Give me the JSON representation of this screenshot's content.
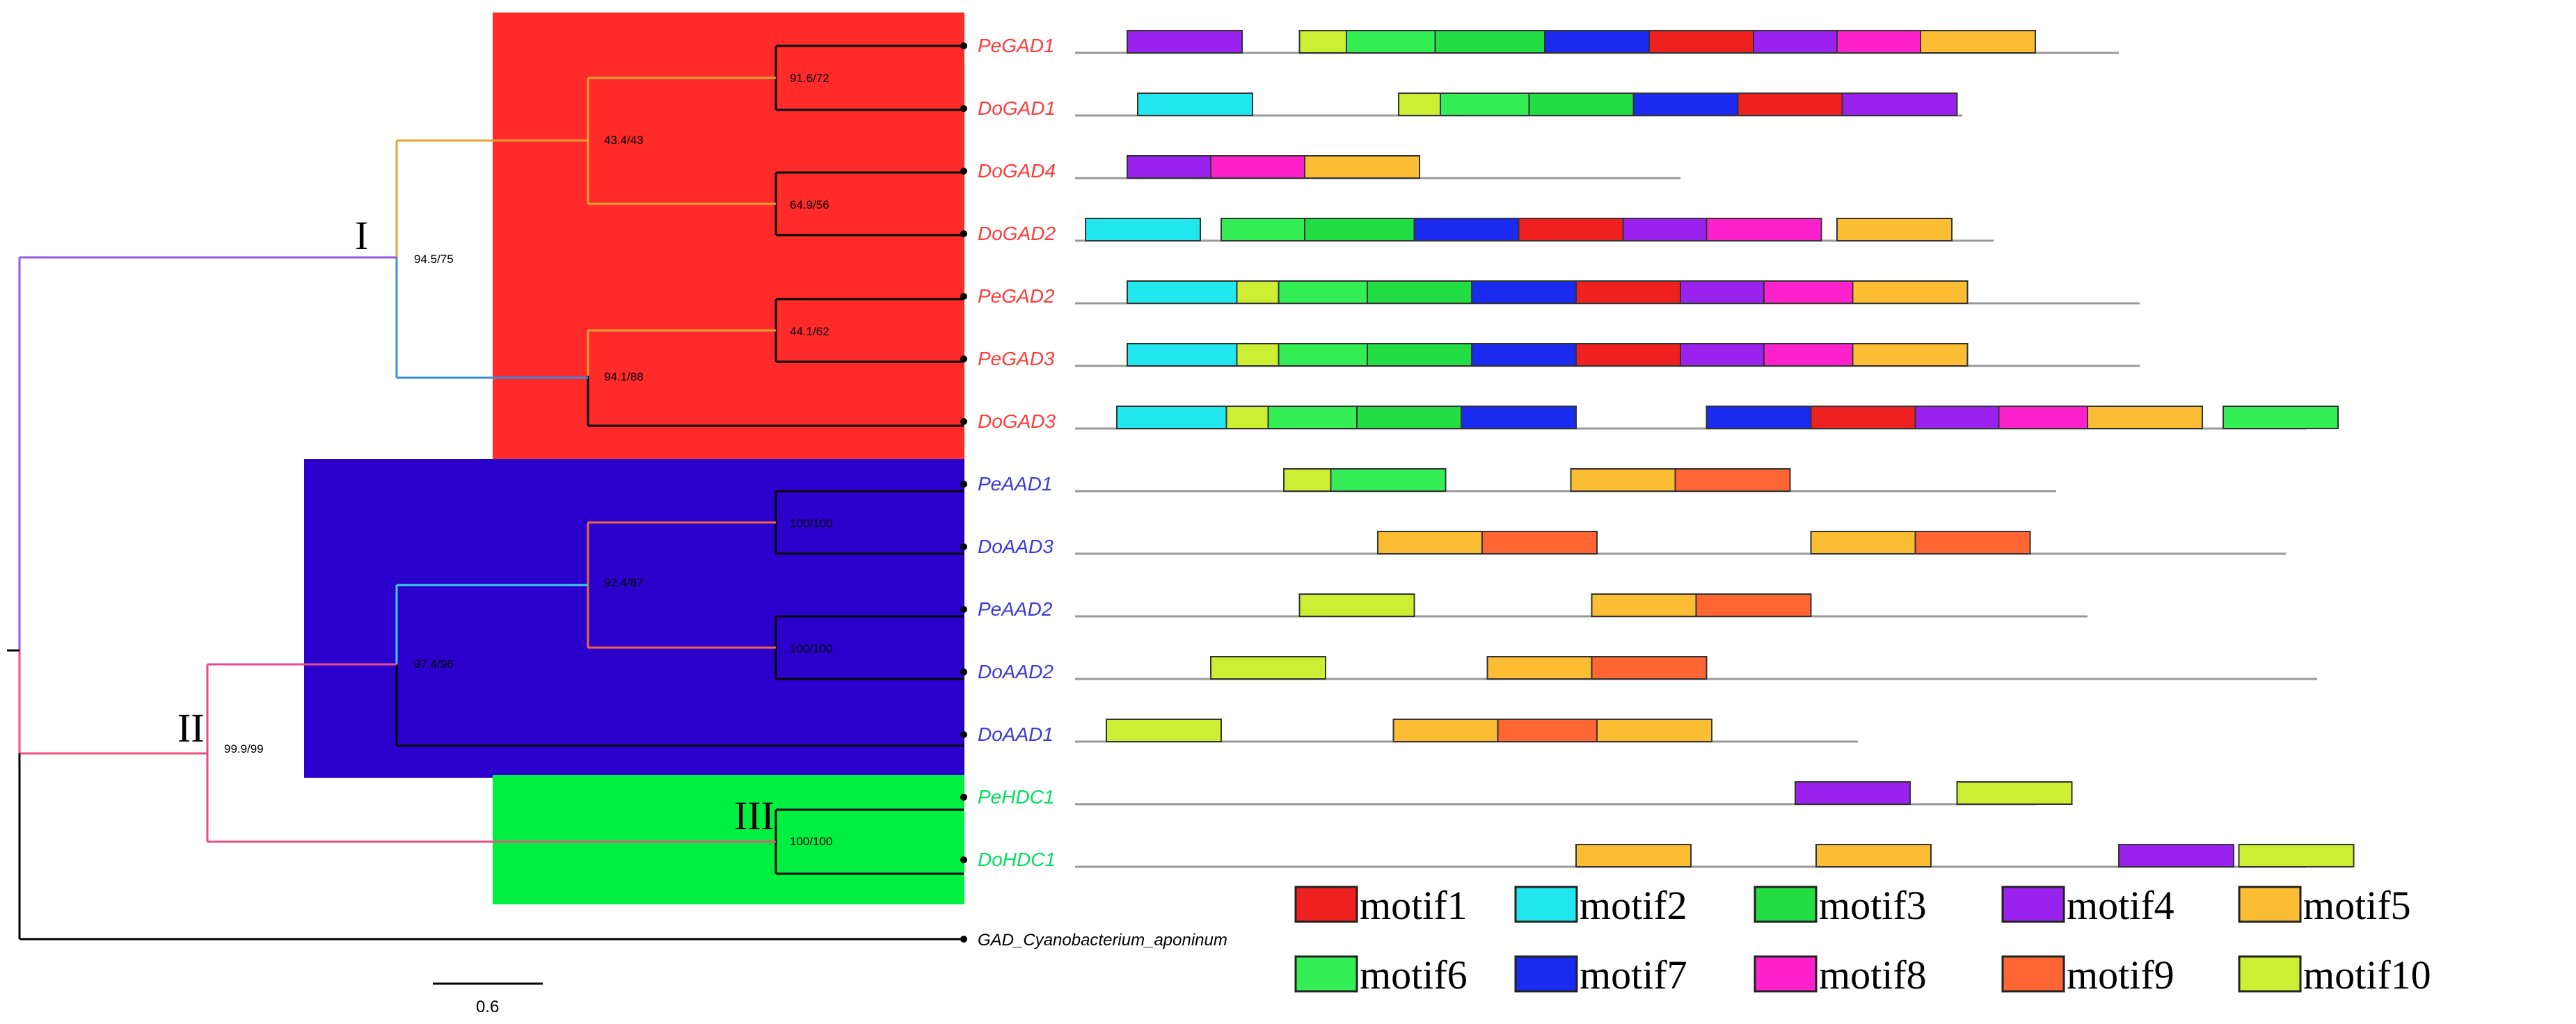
{
  "figure": {
    "clade_labels": [
      "I",
      "II",
      "III"
    ],
    "scale_bar_label": "0.6",
    "colors": {
      "clade_gad_box": "#ff2a2a",
      "clade_aad_box": "#2b00cc",
      "clade_hdc_box": "#00f041",
      "gad_label": "#ff3b3b",
      "aad_label": "#3a3ad6",
      "hdc_label": "#00e060",
      "outgroup_label": "#000000"
    }
  },
  "tree": {
    "support_values": [
      "91.6/72",
      "43.4/43",
      "64.9/56",
      "94.5/75",
      "44.1/62",
      "94.1/88",
      "100/100",
      "92.4/87",
      "100/100",
      "97.4/96",
      "99.9/99",
      "100/100"
    ]
  },
  "sequences": [
    {
      "name": "PeGAD1",
      "group": "gad",
      "length": 1.0,
      "motifs": [
        [
          4,
          0.05
        ],
        [
          10,
          0.215
        ],
        [
          6,
          0.26
        ],
        [
          3,
          0.345
        ],
        [
          7,
          0.45
        ],
        [
          1,
          0.55
        ],
        [
          4,
          0.65
        ],
        [
          8,
          0.73
        ],
        [
          5,
          0.81
        ]
      ]
    },
    {
      "name": "DoGAD1",
      "group": "gad",
      "length": 0.85,
      "motifs": [
        [
          2,
          0.06
        ],
        [
          10,
          0.31
        ],
        [
          6,
          0.35
        ],
        [
          3,
          0.435
        ],
        [
          7,
          0.535
        ],
        [
          1,
          0.635
        ],
        [
          4,
          0.735
        ]
      ]
    },
    {
      "name": "DoGAD4",
      "group": "gad",
      "length": 0.58,
      "motifs": [
        [
          4,
          0.05
        ],
        [
          8,
          0.13
        ],
        [
          5,
          0.22
        ]
      ]
    },
    {
      "name": "DoGAD2",
      "group": "gad",
      "length": 0.88,
      "motifs": [
        [
          2,
          0.01
        ],
        [
          6,
          0.14
        ],
        [
          3,
          0.22
        ],
        [
          7,
          0.325
        ],
        [
          1,
          0.425
        ],
        [
          4,
          0.525
        ],
        [
          8,
          0.605
        ],
        [
          5,
          0.73
        ]
      ]
    },
    {
      "name": "PeGAD2",
      "group": "gad",
      "length": 1.02,
      "motifs": [
        [
          2,
          0.05
        ],
        [
          10,
          0.155
        ],
        [
          6,
          0.195
        ],
        [
          3,
          0.28
        ],
        [
          7,
          0.38
        ],
        [
          1,
          0.48
        ],
        [
          4,
          0.58
        ],
        [
          8,
          0.66
        ],
        [
          5,
          0.745
        ]
      ]
    },
    {
      "name": "PeGAD3",
      "group": "gad",
      "length": 1.02,
      "motifs": [
        [
          2,
          0.05
        ],
        [
          10,
          0.155
        ],
        [
          6,
          0.195
        ],
        [
          3,
          0.28
        ],
        [
          7,
          0.38
        ],
        [
          1,
          0.48
        ],
        [
          4,
          0.58
        ],
        [
          8,
          0.66
        ],
        [
          5,
          0.745
        ]
      ]
    },
    {
      "name": "DoGAD3",
      "group": "gad",
      "length": 1.18,
      "motifs": [
        [
          2,
          0.04
        ],
        [
          10,
          0.145
        ],
        [
          6,
          0.185
        ],
        [
          3,
          0.27
        ],
        [
          7,
          0.37
        ],
        [
          7,
          0.605
        ],
        [
          1,
          0.705
        ],
        [
          4,
          0.805
        ],
        [
          8,
          0.885
        ],
        [
          5,
          0.97
        ],
        [
          6,
          1.1
        ]
      ]
    },
    {
      "name": "PeAAD1",
      "group": "aad",
      "length": 0.94,
      "motifs": [
        [
          10,
          0.2
        ],
        [
          6,
          0.245
        ],
        [
          5,
          0.475
        ],
        [
          9,
          0.575
        ]
      ]
    },
    {
      "name": "DoAAD3",
      "group": "aad",
      "length": 1.16,
      "motifs": [
        [
          5,
          0.29
        ],
        [
          9,
          0.39
        ],
        [
          5,
          0.705
        ],
        [
          9,
          0.805
        ]
      ]
    },
    {
      "name": "PeAAD2",
      "group": "aad",
      "length": 0.97,
      "motifs": [
        [
          10,
          0.215
        ],
        [
          5,
          0.495
        ],
        [
          9,
          0.595
        ]
      ]
    },
    {
      "name": "DoAAD2",
      "group": "aad",
      "length": 1.19,
      "motifs": [
        [
          10,
          0.13
        ],
        [
          5,
          0.395
        ],
        [
          9,
          0.495
        ]
      ]
    },
    {
      "name": "DoAAD1",
      "group": "aad",
      "length": 0.75,
      "motifs": [
        [
          10,
          0.03
        ],
        [
          5,
          0.305
        ],
        [
          9,
          0.405
        ],
        [
          5,
          0.5
        ]
      ]
    },
    {
      "name": "PeHDC1",
      "group": "hdc",
      "length": 0.92,
      "motifs": [
        [
          4,
          0.69
        ],
        [
          10,
          0.845
        ]
      ]
    },
    {
      "name": "DoHDC1",
      "group": "hdc",
      "length": 1.18,
      "motifs": [
        [
          5,
          0.48
        ],
        [
          5,
          0.71
        ],
        [
          4,
          1.0
        ],
        [
          10,
          1.115
        ]
      ]
    },
    {
      "name": "GAD_Cyanobacterium_aponinum",
      "group": "outgroup",
      "length": 0,
      "motifs": []
    }
  ],
  "legend": [
    {
      "id": 1,
      "label": "motif1",
      "color": "#ee2020"
    },
    {
      "id": 2,
      "label": "motif2",
      "color": "#22e6ee"
    },
    {
      "id": 3,
      "label": "motif3",
      "color": "#22dd44"
    },
    {
      "id": 4,
      "label": "motif4",
      "color": "#9922ee"
    },
    {
      "id": 5,
      "label": "motif5",
      "color": "#fbbd33"
    },
    {
      "id": 6,
      "label": "motif6",
      "color": "#33ee55"
    },
    {
      "id": 7,
      "label": "motif7",
      "color": "#1a2aee"
    },
    {
      "id": 8,
      "label": "motif8",
      "color": "#ff22cc"
    },
    {
      "id": 9,
      "label": "motif9",
      "color": "#ff6633"
    },
    {
      "id": 10,
      "label": "motif10",
      "color": "#ccee33"
    }
  ]
}
